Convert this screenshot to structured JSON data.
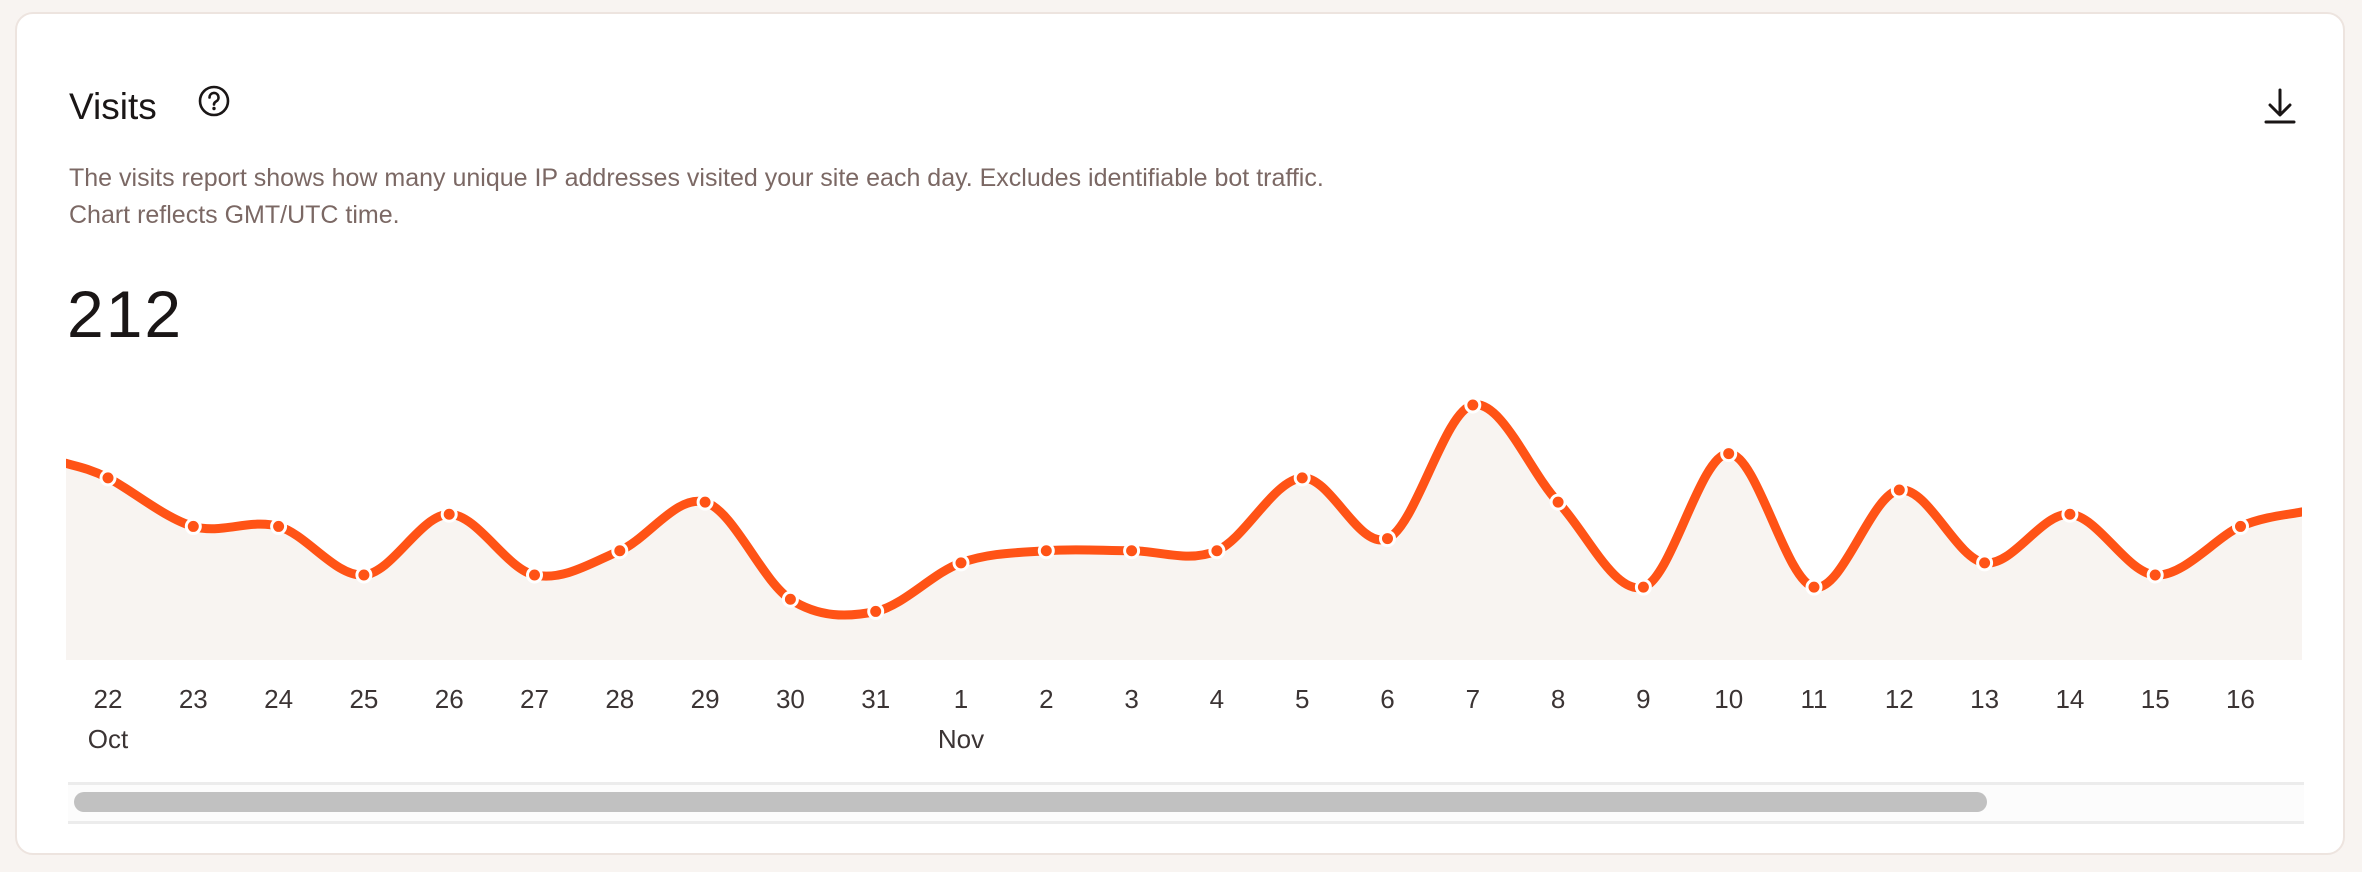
{
  "card": {
    "title": "Visits",
    "help_icon": "question-circle-icon",
    "download_icon": "download-icon",
    "description": "The visits report shows how many unique IP addresses visited your site each day. Excludes identifiable bot traffic. Chart reflects GMT/UTC time.",
    "total": "212"
  },
  "colors": {
    "line": "#ff5316",
    "fill": "#f8f4f1",
    "marker_border": "#ffffff"
  },
  "chart_data": {
    "type": "area",
    "x": [
      "22",
      "23",
      "24",
      "25",
      "26",
      "27",
      "28",
      "29",
      "30",
      "31",
      "1",
      "2",
      "3",
      "4",
      "5",
      "6",
      "7",
      "8",
      "9",
      "10",
      "11",
      "12",
      "13",
      "14",
      "15",
      "16"
    ],
    "month_labels": [
      {
        "at": "22",
        "label": "Oct"
      },
      {
        "at": "1",
        "label": "Nov"
      }
    ],
    "values": [
      15,
      11,
      11,
      7,
      12,
      7,
      9,
      13,
      5,
      4,
      8,
      9,
      9,
      9,
      15,
      10,
      21,
      13,
      6,
      17,
      6,
      14,
      8,
      12,
      7,
      11
    ],
    "ylim": [
      0,
      21
    ],
    "grid": false,
    "smooth": true,
    "horizontal_scroll": true
  }
}
